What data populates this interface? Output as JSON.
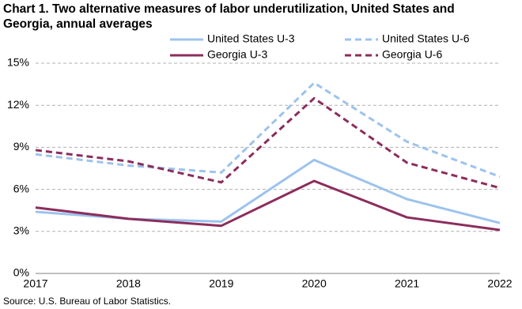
{
  "chart_data": {
    "type": "line",
    "title": "Chart 1. Two alternative measures of labor underutilization, United States and Georgia, annual averages",
    "source": "Source: U.S. Bureau of Labor Statistics.",
    "categories": [
      "2017",
      "2018",
      "2019",
      "2020",
      "2021",
      "2022"
    ],
    "series": [
      {
        "name": "United States U-3",
        "color": "#9cc3ee",
        "dashed": false,
        "values": [
          4.4,
          3.9,
          3.7,
          8.1,
          5.3,
          3.6
        ]
      },
      {
        "name": "United States U-6",
        "color": "#9cc3ee",
        "dashed": true,
        "values": [
          8.5,
          7.7,
          7.2,
          13.6,
          9.4,
          6.9
        ]
      },
      {
        "name": "Georgia U-3",
        "color": "#8c2d5c",
        "dashed": false,
        "values": [
          4.7,
          3.9,
          3.4,
          6.6,
          4.0,
          3.1
        ]
      },
      {
        "name": "Georgia U-6",
        "color": "#8c2d5c",
        "dashed": true,
        "values": [
          8.8,
          8.0,
          6.5,
          12.5,
          7.9,
          6.1
        ]
      }
    ],
    "ylim": [
      0,
      15
    ],
    "yticks": [
      {
        "value": 0,
        "label": "0%"
      },
      {
        "value": 3,
        "label": "3%"
      },
      {
        "value": 6,
        "label": "6%"
      },
      {
        "value": 9,
        "label": "9%"
      },
      {
        "value": 12,
        "label": "12%"
      },
      {
        "value": 15,
        "label": "15%"
      }
    ],
    "grid": true
  }
}
